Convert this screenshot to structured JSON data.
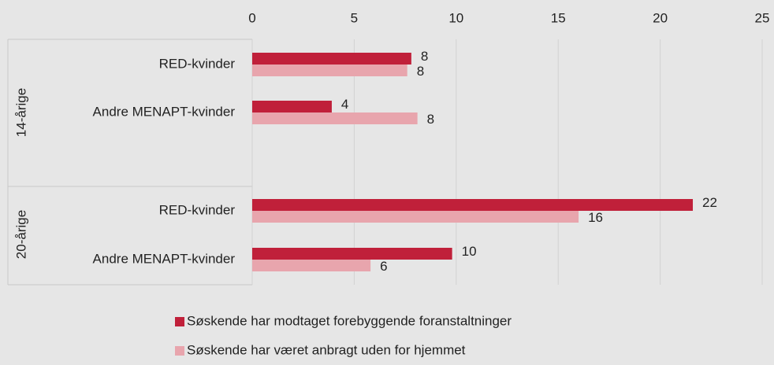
{
  "chart_data": {
    "type": "bar",
    "orientation": "horizontal",
    "groups": [
      "14-årige",
      "20-årige"
    ],
    "categories": [
      "RED-kvinder",
      "Andre MENAPT-kvinder",
      "RED-kvinder",
      "Andre MENAPT-kvinder"
    ],
    "category_group": [
      0,
      0,
      1,
      1
    ],
    "series": [
      {
        "name": "Søskende har modtaget forebyggende foranstaltninger",
        "color": "#c0203a",
        "values": [
          7.8,
          3.9,
          21.6,
          9.8
        ],
        "value_labels": [
          "8",
          "4",
          "22",
          "10"
        ]
      },
      {
        "name": "Søskende har været anbragt uden for hjemmet",
        "color": "#e8a5ad",
        "values": [
          7.6,
          8.1,
          16.0,
          5.8
        ],
        "value_labels": [
          "8",
          "8",
          "16",
          "6"
        ]
      }
    ],
    "xlim": [
      0,
      25
    ],
    "xticks": [
      0,
      5,
      10,
      15,
      20,
      25
    ],
    "grid": true
  }
}
